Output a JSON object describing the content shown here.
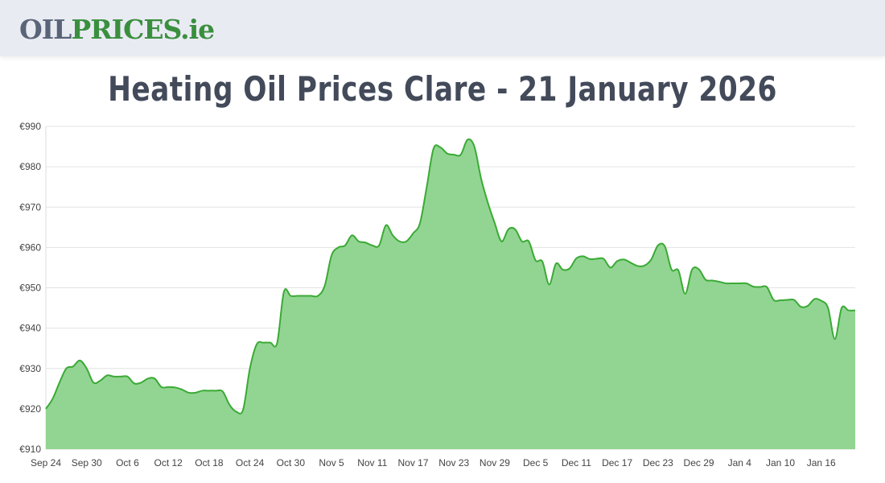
{
  "header": {
    "logo_part1": "OIL",
    "logo_part2": "PRICES.ie"
  },
  "chart_data": {
    "type": "area",
    "title": "Heating Oil Prices Clare - 21 January 2026",
    "xlabel": "",
    "ylabel": "",
    "ylim": [
      910,
      990
    ],
    "y_ticks": [
      "€910",
      "€920",
      "€930",
      "€940",
      "€950",
      "€960",
      "€970",
      "€980",
      "€990"
    ],
    "x_ticks": [
      "Sep 24",
      "Sep 30",
      "Oct 6",
      "Oct 12",
      "Oct 18",
      "Oct 24",
      "Oct 30",
      "Nov 5",
      "Nov 11",
      "Nov 17",
      "Nov 23",
      "Nov 29",
      "Dec 5",
      "Dec 11",
      "Dec 17",
      "Dec 23",
      "Dec 29",
      "Jan 4",
      "Jan 10",
      "Jan 16"
    ],
    "grid": true,
    "colors": {
      "line": "#3aaa35",
      "fill": "#92d592"
    },
    "x": [
      "Sep 24",
      "Sep 25",
      "Sep 26",
      "Sep 27",
      "Sep 28",
      "Sep 29",
      "Sep 30",
      "Oct 1",
      "Oct 2",
      "Oct 3",
      "Oct 4",
      "Oct 5",
      "Oct 6",
      "Oct 7",
      "Oct 8",
      "Oct 9",
      "Oct 10",
      "Oct 11",
      "Oct 12",
      "Oct 13",
      "Oct 14",
      "Oct 15",
      "Oct 16",
      "Oct 17",
      "Oct 18",
      "Oct 19",
      "Oct 20",
      "Oct 21",
      "Oct 22",
      "Oct 23",
      "Oct 24",
      "Oct 25",
      "Oct 26",
      "Oct 27",
      "Oct 28",
      "Oct 29",
      "Oct 30",
      "Oct 31",
      "Nov 1",
      "Nov 2",
      "Nov 3",
      "Nov 4",
      "Nov 5",
      "Nov 6",
      "Nov 7",
      "Nov 8",
      "Nov 9",
      "Nov 10",
      "Nov 11",
      "Nov 12",
      "Nov 13",
      "Nov 14",
      "Nov 15",
      "Nov 16",
      "Nov 17",
      "Nov 18",
      "Nov 19",
      "Nov 20",
      "Nov 21",
      "Nov 22",
      "Nov 23",
      "Nov 24",
      "Nov 25",
      "Nov 26",
      "Nov 27",
      "Nov 28",
      "Nov 29",
      "Nov 30",
      "Dec 1",
      "Dec 2",
      "Dec 3",
      "Dec 4",
      "Dec 5",
      "Dec 6",
      "Dec 7",
      "Dec 8",
      "Dec 9",
      "Dec 10",
      "Dec 11",
      "Dec 12",
      "Dec 13",
      "Dec 14",
      "Dec 15",
      "Dec 16",
      "Dec 17",
      "Dec 18",
      "Dec 19",
      "Dec 20",
      "Dec 21",
      "Dec 22",
      "Dec 23",
      "Dec 24",
      "Dec 25",
      "Dec 26",
      "Dec 27",
      "Dec 28",
      "Dec 29",
      "Dec 30",
      "Dec 31",
      "Jan 1",
      "Jan 2",
      "Jan 3",
      "Jan 4",
      "Jan 5",
      "Jan 6",
      "Jan 7",
      "Jan 8",
      "Jan 9",
      "Jan 10",
      "Jan 11",
      "Jan 12",
      "Jan 13",
      "Jan 14",
      "Jan 15",
      "Jan 16",
      "Jan 17",
      "Jan 18",
      "Jan 19",
      "Jan 20",
      "Jan 21"
    ],
    "values": [
      920,
      922.5,
      926.5,
      930,
      930.5,
      932,
      930,
      926.5,
      927,
      928.3,
      928,
      928,
      928,
      926.3,
      926.5,
      927.5,
      927.5,
      925.4,
      925.4,
      925.3,
      924.8,
      924,
      924,
      924.5,
      924.5,
      924.5,
      924.3,
      921,
      919.3,
      919.8,
      930,
      936,
      936.4,
      936.4,
      936.3,
      949,
      948,
      948,
      948,
      948,
      948,
      950.5,
      958,
      960,
      960.5,
      963,
      961.5,
      961.2,
      960.5,
      960.5,
      965.5,
      963,
      961.5,
      961.5,
      963.5,
      966,
      975,
      984.5,
      984.8,
      983.3,
      983,
      983,
      986.7,
      985,
      977,
      971,
      966,
      961.5,
      964.5,
      964.5,
      961.5,
      961.5,
      956.8,
      956.5,
      950.8,
      956,
      954.5,
      954.8,
      957.3,
      957.8,
      957.1,
      957.2,
      957.2,
      955,
      956.6,
      957,
      956.2,
      955.4,
      955.5,
      957,
      960.5,
      960.3,
      954.5,
      954.3,
      948.5,
      954.5,
      954.6,
      952,
      951.8,
      951.5,
      951.1,
      951.1,
      951.1,
      951.1,
      950.3,
      950.2,
      950.2,
      947,
      946.9,
      947,
      947,
      945.3,
      945.5,
      947.2,
      946.8,
      945,
      937.3,
      945,
      944.4,
      944.4
    ]
  }
}
